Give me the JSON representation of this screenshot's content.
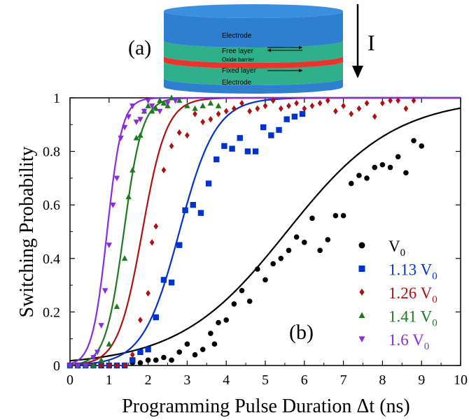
{
  "inset": {
    "panel_label": "(a)",
    "current_label": "I",
    "layers": [
      {
        "label": "Electrode",
        "color": "#2f7fd1"
      },
      {
        "label": "Free layer",
        "color": "#2fb08a"
      },
      {
        "label": "Oxide barrier",
        "color": "#e8352c"
      },
      {
        "label": "Fixed layer",
        "color": "#2fb08a"
      },
      {
        "label": "Electrode",
        "color": "#2f7fd1"
      }
    ]
  },
  "chart_data": {
    "type": "scatter",
    "panel_label": "(b)",
    "xlabel": "Programming Pulse Duration Δt (ns)",
    "ylabel": "Switching Probability",
    "xlim": [
      0,
      10
    ],
    "ylim": [
      0,
      1
    ],
    "xticks": [
      "0",
      "1",
      "2",
      "3",
      "4",
      "5",
      "6",
      "7",
      "8",
      "9",
      "10"
    ],
    "yticks": [
      "0",
      "0.2",
      "0.4",
      "0.6",
      "0.8",
      "1"
    ],
    "grid": false,
    "legend_position": "lower-right",
    "series": [
      {
        "name": "V0",
        "label_main": "V",
        "label_sub": "0",
        "color": "#000000",
        "marker": "circle",
        "fit": {
          "x0": 5.55,
          "w": 4.0
        },
        "x": [
          0.0,
          0.2,
          0.4,
          0.6,
          0.8,
          1.0,
          1.2,
          1.4,
          1.6,
          1.8,
          2.0,
          2.2,
          2.4,
          2.6,
          2.8,
          3.0,
          3.2,
          3.4,
          3.6,
          3.7,
          3.8,
          4.0,
          4.2,
          4.4,
          4.6,
          4.8,
          5.0,
          5.2,
          5.4,
          5.6,
          5.8,
          6.0,
          6.2,
          6.4,
          6.6,
          6.8,
          7.0,
          7.2,
          7.4,
          7.6,
          7.8,
          8.0,
          8.2,
          8.4,
          8.6,
          8.8,
          9.0
        ],
        "y": [
          0.0,
          0.0,
          0.0,
          0.0,
          0.0,
          0.0,
          0.0,
          0.0,
          0.01,
          0.01,
          0.02,
          0.02,
          0.03,
          0.02,
          0.05,
          0.08,
          0.04,
          0.06,
          0.12,
          0.08,
          0.16,
          0.17,
          0.23,
          0.28,
          0.24,
          0.36,
          0.32,
          0.38,
          0.4,
          0.43,
          0.48,
          0.46,
          0.55,
          0.43,
          0.47,
          0.56,
          0.56,
          0.68,
          0.71,
          0.7,
          0.74,
          0.75,
          0.74,
          0.78,
          0.72,
          0.84,
          0.82
        ]
      },
      {
        "name": "1.13 V0",
        "label_main": "1.13 V",
        "label_sub": "0",
        "color": "#0033cc",
        "marker": "square",
        "fit": {
          "x0": 2.8,
          "w": 1.35
        },
        "x": [
          0.0,
          0.2,
          0.4,
          0.6,
          0.8,
          1.0,
          1.2,
          1.4,
          1.6,
          1.8,
          2.0,
          2.2,
          2.4,
          2.6,
          2.8,
          2.95,
          3.15,
          3.35,
          3.55,
          3.75,
          3.95,
          4.15,
          4.35,
          4.55,
          4.75,
          4.95,
          5.15,
          5.35,
          5.55,
          5.75,
          5.95
        ],
        "y": [
          0.0,
          0.0,
          0.0,
          0.0,
          0.0,
          0.0,
          0.0,
          0.0,
          0.02,
          0.05,
          0.06,
          0.18,
          0.32,
          0.31,
          0.45,
          0.58,
          0.6,
          0.57,
          0.68,
          0.77,
          0.82,
          0.81,
          0.85,
          0.8,
          0.8,
          0.89,
          0.86,
          0.88,
          0.92,
          0.93,
          0.94
        ]
      },
      {
        "name": "1.26 V0",
        "label_main": "1.26 V",
        "label_sub": "0",
        "color": "#b01010",
        "marker": "diamond",
        "fit": {
          "x0": 1.85,
          "w": 0.9
        },
        "x": [
          0.0,
          0.2,
          0.4,
          0.6,
          0.8,
          1.0,
          1.2,
          1.4,
          1.6,
          1.8,
          2.0,
          2.1,
          2.2,
          2.4,
          2.6,
          2.8,
          3.0,
          3.2,
          3.4,
          3.6,
          3.8,
          4.0,
          4.2,
          4.4,
          4.6,
          4.8,
          5.0,
          5.2,
          5.4,
          5.6,
          5.8,
          6.0,
          6.2,
          6.4,
          6.6,
          6.8,
          7.0,
          7.2,
          7.4,
          7.6,
          7.8,
          8.0,
          8.2,
          8.4,
          8.6,
          8.8
        ],
        "y": [
          0.0,
          0.0,
          0.0,
          0.0,
          0.0,
          0.0,
          0.0,
          0.0,
          0.04,
          0.17,
          0.27,
          0.46,
          0.52,
          0.73,
          0.82,
          0.87,
          0.86,
          0.94,
          0.91,
          0.92,
          0.94,
          0.95,
          0.96,
          0.98,
          0.95,
          0.96,
          0.97,
          0.99,
          0.96,
          0.97,
          0.98,
          0.96,
          0.97,
          0.98,
          0.99,
          0.95,
          0.97,
          0.94,
          0.96,
          0.98,
          0.93,
          0.98,
          0.99,
          0.99,
          0.96,
          0.99
        ]
      },
      {
        "name": "1.41 V0",
        "label_main": "1.41 V",
        "label_sub": "0",
        "color": "#1e7a1e",
        "marker": "triangle-up",
        "fit": {
          "x0": 1.38,
          "w": 0.68
        },
        "x": [
          0.0,
          0.2,
          0.4,
          0.6,
          0.8,
          1.0,
          1.2,
          1.4,
          1.5,
          1.6,
          1.7,
          1.8,
          1.9,
          2.0,
          2.1,
          2.2,
          2.3,
          2.4,
          2.5,
          2.6,
          2.8,
          3.0,
          3.2,
          3.4,
          3.6,
          3.8
        ],
        "y": [
          0.0,
          0.0,
          0.0,
          0.0,
          0.02,
          0.08,
          0.22,
          0.4,
          0.63,
          0.73,
          0.85,
          0.86,
          0.95,
          0.97,
          0.95,
          0.96,
          0.99,
          0.98,
          0.97,
          1.0,
          0.99,
          0.97,
          0.96,
          0.97,
          0.98,
          0.97
        ]
      },
      {
        "name": "1.6 V0",
        "label_main": "1.6 V",
        "label_sub": "0",
        "color": "#8a2be2",
        "marker": "triangle-down",
        "fit": {
          "x0": 0.95,
          "w": 0.55
        },
        "x": [
          0.0,
          0.2,
          0.4,
          0.6,
          0.7,
          0.8,
          0.9,
          1.0,
          1.1,
          1.2,
          1.3,
          1.4,
          1.5,
          1.6,
          1.7,
          1.8,
          1.9,
          2.0,
          2.1,
          2.3,
          2.5,
          2.7
        ],
        "y": [
          0.0,
          0.0,
          0.0,
          0.03,
          0.05,
          0.15,
          0.28,
          0.45,
          0.6,
          0.7,
          0.85,
          0.89,
          0.93,
          0.97,
          0.91,
          0.92,
          0.95,
          0.99,
          0.97,
          0.95,
          0.98,
          0.99
        ]
      }
    ]
  }
}
